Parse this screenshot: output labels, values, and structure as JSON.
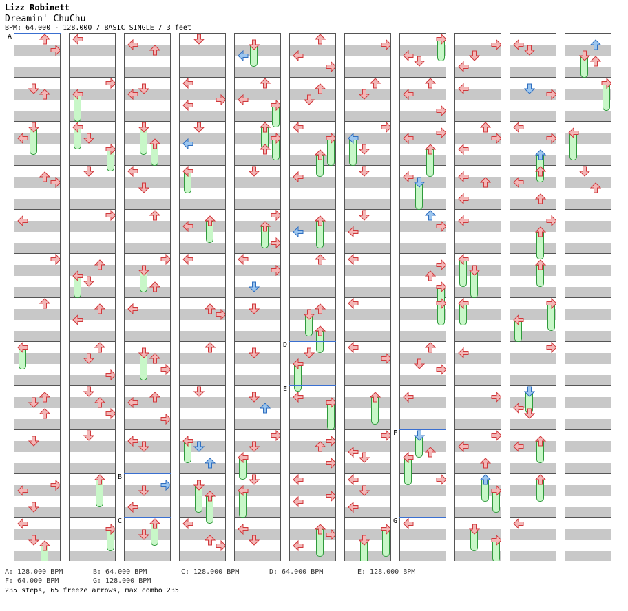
{
  "header": {
    "artist": "Lizz Robinett",
    "title": "Dreamin' ChuChu",
    "info": "BPM: 64.000 - 128.000 / BASIC SINGLE / 3 feet"
  },
  "chart": {
    "columns": 11,
    "measures_per_column": 12,
    "lanes": [
      "left",
      "down",
      "up",
      "right"
    ],
    "colors": {
      "note": "#f3b6b6",
      "note_border": "#d0393c",
      "blue_note": "#9cc6ef",
      "blue_border": "#2f6fc0",
      "freeze_fill": "#c8f7c8",
      "freeze_border": "#2f9a3c",
      "band": "#c8c8c8",
      "bpm_line": "#3a6fd0"
    },
    "bpm_markers": [
      {
        "label": "A",
        "column": 0,
        "measure": 0
      },
      {
        "label": "B",
        "column": 2,
        "measure": 10
      },
      {
        "label": "C",
        "column": 2,
        "measure": 11
      },
      {
        "label": "D",
        "column": 5,
        "measure": 7
      },
      {
        "label": "E",
        "column": 5,
        "measure": 8
      },
      {
        "label": "F",
        "column": 7,
        "measure": 9
      },
      {
        "label": "G",
        "column": 7,
        "measure": 11
      }
    ]
  },
  "legend": [
    {
      "key": "A",
      "text": "A: 128.000 BPM"
    },
    {
      "key": "B",
      "text": "B: 64.000 BPM"
    },
    {
      "key": "C",
      "text": "C: 128.000 BPM"
    },
    {
      "key": "D",
      "text": "D: 64.000 BPM"
    },
    {
      "key": "E",
      "text": "E: 128.000 BPM"
    },
    {
      "key": "F",
      "text": "F: 64.000 BPM"
    },
    {
      "key": "G",
      "text": "G: 128.000 BPM"
    }
  ],
  "stats": "235 steps, 65 freeze arrows, max combo 235"
}
